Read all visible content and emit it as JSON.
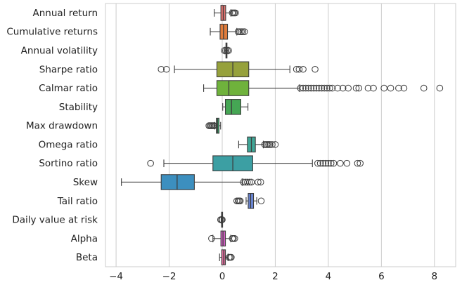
{
  "chart_data": {
    "type": "horizontal-boxplot",
    "title": "",
    "xlabel": "",
    "ylabel": "",
    "xlim": [
      -4.4,
      8.8
    ],
    "x_ticks": [
      -4,
      -2,
      0,
      2,
      4,
      6,
      8
    ],
    "x_tick_labels": [
      "−4",
      "−2",
      "0",
      "2",
      "4",
      "6",
      "8"
    ],
    "grid": "vertical",
    "categories": [
      "Annual return",
      "Cumulative returns",
      "Annual volatility",
      "Sharpe ratio",
      "Calmar ratio",
      "Stability",
      "Max drawdown",
      "Omega ratio",
      "Sortino ratio",
      "Skew",
      "Tail ratio",
      "Daily value at risk",
      "Alpha",
      "Beta"
    ],
    "boxes": [
      {
        "name": "Annual return",
        "color": "#e1726f",
        "whisker_low": -0.3,
        "q1": -0.05,
        "median": 0.04,
        "q3": 0.13,
        "whisker_high": 0.33,
        "outliers": [
          0.38,
          0.42,
          0.46,
          0.5
        ]
      },
      {
        "name": "Cumulative returns",
        "color": "#e07c3c",
        "whisker_low": -0.45,
        "q1": -0.08,
        "median": 0.05,
        "q3": 0.2,
        "whisker_high": 0.55,
        "outliers": [
          0.6,
          0.66,
          0.72,
          0.78,
          0.84
        ]
      },
      {
        "name": "Annual volatility",
        "color": "#c6a03c",
        "whisker_low": 0.1,
        "q1": 0.14,
        "median": 0.16,
        "q3": 0.18,
        "whisker_high": 0.22,
        "outliers": [
          0.08,
          0.13,
          0.19,
          0.24
        ]
      },
      {
        "name": "Sharpe ratio",
        "color": "#96a13c",
        "whisker_low": -1.8,
        "q1": -0.2,
        "median": 0.4,
        "q3": 1.0,
        "whisker_high": 2.55,
        "outliers": [
          -2.3,
          -2.1,
          2.8,
          2.9,
          3.05,
          3.5
        ]
      },
      {
        "name": "Calmar ratio",
        "color": "#6fb23c",
        "whisker_low": -0.7,
        "q1": -0.2,
        "median": 0.25,
        "q3": 1.0,
        "whisker_high": 2.9,
        "outliers": [
          2.95,
          3.05,
          3.15,
          3.25,
          3.35,
          3.45,
          3.55,
          3.65,
          3.75,
          3.85,
          3.95,
          4.05,
          4.15,
          4.35,
          4.55,
          4.75,
          5.05,
          5.15,
          5.5,
          5.7,
          6.1,
          6.35,
          6.65,
          6.85,
          7.6,
          8.2
        ]
      },
      {
        "name": "Stability",
        "color": "#45a654",
        "whisker_low": 0.02,
        "q1": 0.12,
        "median": 0.35,
        "q3": 0.7,
        "whisker_high": 0.97,
        "outliers": []
      },
      {
        "name": "Max drawdown",
        "color": "#3fa06b",
        "whisker_low": -0.28,
        "q1": -0.22,
        "median": -0.18,
        "q3": -0.12,
        "whisker_high": -0.06,
        "outliers": [
          -0.5,
          -0.46,
          -0.42,
          -0.38,
          -0.34,
          -0.3
        ]
      },
      {
        "name": "Omega ratio",
        "color": "#3fa596",
        "whisker_low": 0.62,
        "q1": 0.95,
        "median": 1.1,
        "q3": 1.25,
        "whisker_high": 1.55,
        "outliers": [
          1.6,
          1.65,
          1.7,
          1.75,
          1.8,
          1.88,
          2.0
        ]
      },
      {
        "name": "Sortino ratio",
        "color": "#3c9fa3",
        "whisker_low": -2.2,
        "q1": -0.35,
        "median": 0.4,
        "q3": 1.15,
        "whisker_high": 3.4,
        "outliers": [
          -2.7,
          3.6,
          3.7,
          3.8,
          3.9,
          4.0,
          4.1,
          4.2,
          4.45,
          4.7,
          5.1,
          5.2
        ]
      },
      {
        "name": "Skew",
        "color": "#3c8fbf",
        "whisker_low": -3.8,
        "q1": -2.3,
        "median": -1.7,
        "q3": -1.05,
        "whisker_high": 0.75,
        "outliers": [
          0.8,
          0.88,
          0.95,
          1.03,
          1.1,
          1.35,
          1.45
        ]
      },
      {
        "name": "Tail ratio",
        "color": "#6a86d4",
        "whisker_low": 0.9,
        "q1": 0.98,
        "median": 1.07,
        "q3": 1.18,
        "whisker_high": 1.3,
        "outliers": [
          0.55,
          0.6,
          0.64,
          0.68,
          1.47
        ]
      },
      {
        "name": "Daily value at risk",
        "color": "#9b83d1",
        "whisker_low": -0.04,
        "q1": -0.025,
        "median": -0.015,
        "q3": -0.008,
        "whisker_high": 0.0,
        "outliers": [
          -0.06,
          -0.02,
          0.0
        ]
      },
      {
        "name": "Alpha",
        "color": "#d260c4",
        "whisker_low": -0.35,
        "q1": -0.05,
        "median": 0.03,
        "q3": 0.12,
        "whisker_high": 0.32,
        "outliers": [
          -0.4,
          0.38,
          0.42,
          0.47
        ]
      },
      {
        "name": "Beta",
        "color": "#dc6d9a",
        "whisker_low": -0.1,
        "q1": -0.02,
        "median": 0.06,
        "q3": 0.12,
        "whisker_high": 0.22,
        "outliers": [
          0.26,
          0.3,
          0.34
        ]
      }
    ]
  }
}
